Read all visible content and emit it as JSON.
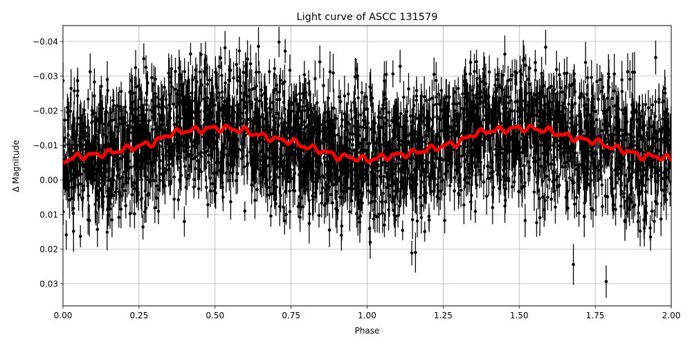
{
  "chart_data": {
    "type": "scatter",
    "title": "Light curve of ASCC 131579",
    "xlabel": "Phase",
    "ylabel": "Δ Magnitude",
    "xlim": [
      0.0,
      2.0
    ],
    "ylim": [
      0.0364,
      -0.0446
    ],
    "y_inverted": true,
    "grid": true,
    "x_ticks": [
      0.0,
      0.25,
      0.5,
      0.75,
      1.0,
      1.25,
      1.5,
      1.75,
      2.0
    ],
    "x_tick_labels": [
      "0.00",
      "0.25",
      "0.50",
      "0.75",
      "1.00",
      "1.25",
      "1.50",
      "1.75",
      "2.00"
    ],
    "y_ticks": [
      -0.04,
      -0.03,
      -0.02,
      -0.01,
      0.0,
      0.01,
      0.02,
      0.03
    ],
    "y_tick_labels": [
      "−0.04",
      "−0.03",
      "−0.02",
      "−0.01",
      "0.00",
      "0.01",
      "0.02",
      "0.03"
    ],
    "series": [
      {
        "name": "observations",
        "style": "errorbar",
        "color": "#000000",
        "description": "Dense phase-folded photometry with error bars, scatter roughly ±0.03 mag around the model",
        "approx_scatter_sigma": 0.009,
        "approx_errorbar_halfwidth": 0.004
      },
      {
        "name": "binned model",
        "style": "line",
        "color": "#ff0000",
        "linewidth": 5,
        "x": [
          0.0,
          0.05,
          0.1,
          0.15,
          0.2,
          0.25,
          0.3,
          0.35,
          0.4,
          0.45,
          0.5,
          0.55,
          0.6,
          0.65,
          0.7,
          0.75,
          0.8,
          0.85,
          0.9,
          0.95,
          1.0,
          1.05,
          1.1,
          1.15,
          1.2,
          1.25,
          1.3,
          1.35,
          1.4,
          1.45,
          1.5,
          1.55,
          1.6,
          1.65,
          1.7,
          1.75,
          1.8,
          1.85,
          1.9,
          1.95,
          2.0
        ],
        "y": [
          -0.0055,
          -0.0068,
          -0.0072,
          -0.0078,
          -0.0088,
          -0.0098,
          -0.0108,
          -0.0133,
          -0.0142,
          -0.0145,
          -0.015,
          -0.0148,
          -0.0142,
          -0.0128,
          -0.0118,
          -0.0112,
          -0.0095,
          -0.0085,
          -0.0068,
          -0.0065,
          -0.0058,
          -0.0066,
          -0.0072,
          -0.0078,
          -0.0088,
          -0.0098,
          -0.0108,
          -0.0133,
          -0.0142,
          -0.0145,
          -0.015,
          -0.0148,
          -0.0142,
          -0.0128,
          -0.0118,
          -0.0112,
          -0.0095,
          -0.0085,
          -0.0068,
          -0.0068,
          -0.006
        ]
      }
    ]
  },
  "colors": {
    "data": "#000000",
    "model": "#ff0000",
    "grid": "#b0b0b0",
    "background": "#ffffff"
  }
}
